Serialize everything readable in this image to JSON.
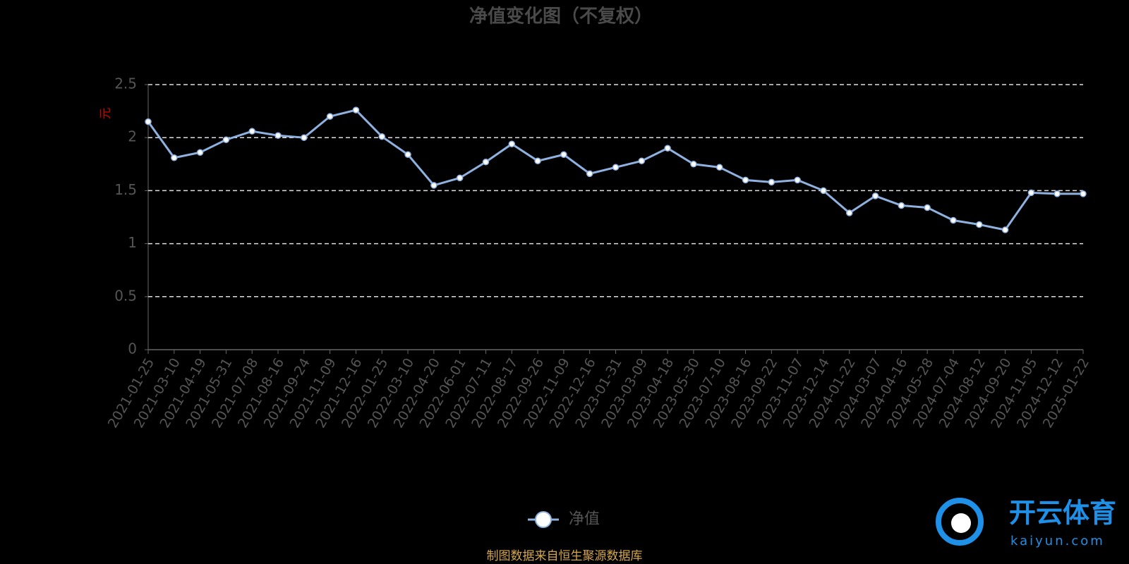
{
  "chart_data": {
    "type": "line",
    "title": "净值变化图（不复权）",
    "y_label": "元",
    "categories": [
      "2021-01-25",
      "2021-03-10",
      "2021-04-19",
      "2021-05-31",
      "2021-07-08",
      "2021-08-16",
      "2021-09-24",
      "2021-11-09",
      "2021-12-16",
      "2022-01-25",
      "2022-03-10",
      "2022-04-20",
      "2022-06-01",
      "2022-07-11",
      "2022-08-17",
      "2022-09-26",
      "2022-11-09",
      "2022-12-16",
      "2023-01-31",
      "2023-03-09",
      "2023-04-18",
      "2023-05-30",
      "2023-07-10",
      "2023-08-16",
      "2023-09-22",
      "2023-11-07",
      "2023-12-14",
      "2024-01-22",
      "2024-03-07",
      "2024-04-16",
      "2024-05-28",
      "2024-07-04",
      "2024-08-12",
      "2024-09-20",
      "2024-11-05",
      "2024-12-12",
      "2025-01-22"
    ],
    "series": [
      {
        "name": "净值",
        "color": "#8fb1e0",
        "values": [
          2.15,
          1.81,
          1.86,
          1.98,
          2.06,
          2.02,
          2.0,
          2.2,
          2.26,
          2.01,
          1.84,
          1.55,
          1.62,
          1.77,
          1.94,
          1.78,
          1.84,
          1.66,
          1.72,
          1.78,
          1.9,
          1.75,
          1.72,
          1.6,
          1.58,
          1.6,
          1.5,
          1.29,
          1.45,
          1.36,
          1.34,
          1.22,
          1.18,
          1.13,
          1.48,
          1.47,
          1.47
        ]
      }
    ],
    "ylim": [
      0,
      2.5
    ],
    "yticks": [
      0,
      0.5,
      1,
      1.5,
      2,
      2.5
    ],
    "grid": true,
    "legend": "bottom",
    "source": "制图数据来自恒生聚源数据库"
  },
  "logo": {
    "name": "开云体育",
    "site": "kaiyun.com"
  }
}
